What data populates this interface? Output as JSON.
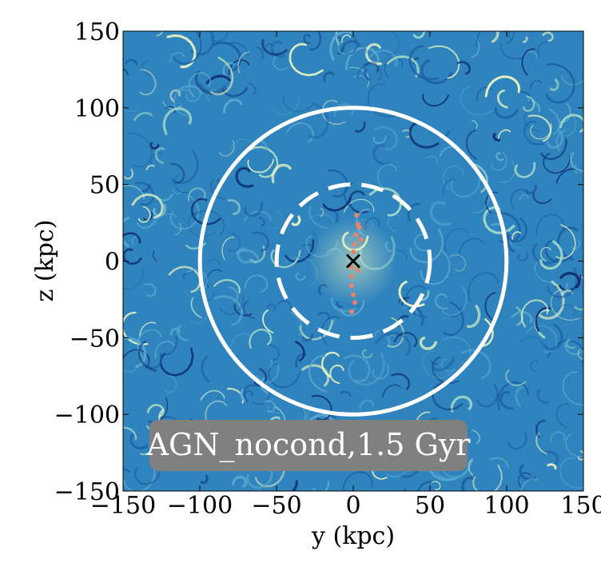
{
  "chart_data": {
    "type": "heatmap",
    "title": "",
    "xlabel": "y  (kpc)",
    "ylabel": "z  (kpc)",
    "xlim": [
      -150,
      150
    ],
    "ylim": [
      -150,
      150
    ],
    "x_ticks": [
      -150,
      -100,
      -50,
      0,
      50,
      100,
      150
    ],
    "y_ticks": [
      -150,
      -100,
      -50,
      0,
      50,
      100,
      150
    ],
    "x_tick_labels": [
      "−150",
      "−100",
      "−50",
      "0",
      "50",
      "100",
      "150"
    ],
    "y_tick_labels": [
      "−150",
      "−100",
      "−50",
      "0",
      "50",
      "100",
      "150"
    ],
    "grid": false,
    "colormap": [
      "#0b2a6e",
      "#1c5fa3",
      "#2f84bd",
      "#5aa9cf",
      "#a8dcc8",
      "#eef7c2"
    ],
    "circles": [
      {
        "name": "outer-circle",
        "center": [
          0,
          0
        ],
        "radius": 100,
        "style": "solid",
        "color": "#ffffff"
      },
      {
        "name": "inner-circle",
        "center": [
          0,
          0
        ],
        "radius": 50,
        "style": "dashed",
        "color": "#ffffff"
      }
    ],
    "center_marker": {
      "x": 0,
      "y": 0,
      "symbol": "x",
      "color": "#000000"
    },
    "dots_color": "#e9836a",
    "annotation": {
      "text": "AGN_nocond,1.5 Gyr",
      "background": "#808080",
      "color": "#ffffff"
    }
  }
}
